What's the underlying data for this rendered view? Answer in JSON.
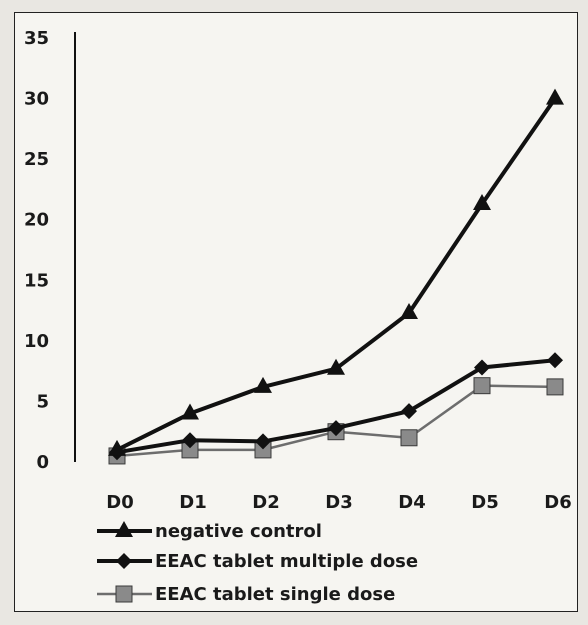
{
  "chart_data": {
    "type": "line",
    "categories": [
      "D0",
      "D1",
      "D2",
      "D3",
      "D4",
      "D5",
      "D6"
    ],
    "ylim": [
      0,
      35
    ],
    "yticks": [
      0,
      5,
      10,
      15,
      20,
      25,
      30,
      35
    ],
    "grid": false,
    "legend_position": "bottom-left",
    "series": [
      {
        "name": "negative control",
        "values": [
          1,
          4,
          6.2,
          7.7,
          12.3,
          21.3,
          30
        ],
        "marker": "triangle",
        "color": "#111111"
      },
      {
        "name": "EEAC tablet multiple dose",
        "values": [
          0.8,
          1.8,
          1.7,
          2.8,
          4.2,
          7.8,
          8.4
        ],
        "marker": "diamond",
        "color": "#111111"
      },
      {
        "name": "EEAC tablet single dose",
        "values": [
          0.5,
          1,
          1,
          2.5,
          2,
          6.3,
          6.2
        ],
        "marker": "square",
        "color": "#6d6d6d"
      }
    ]
  }
}
